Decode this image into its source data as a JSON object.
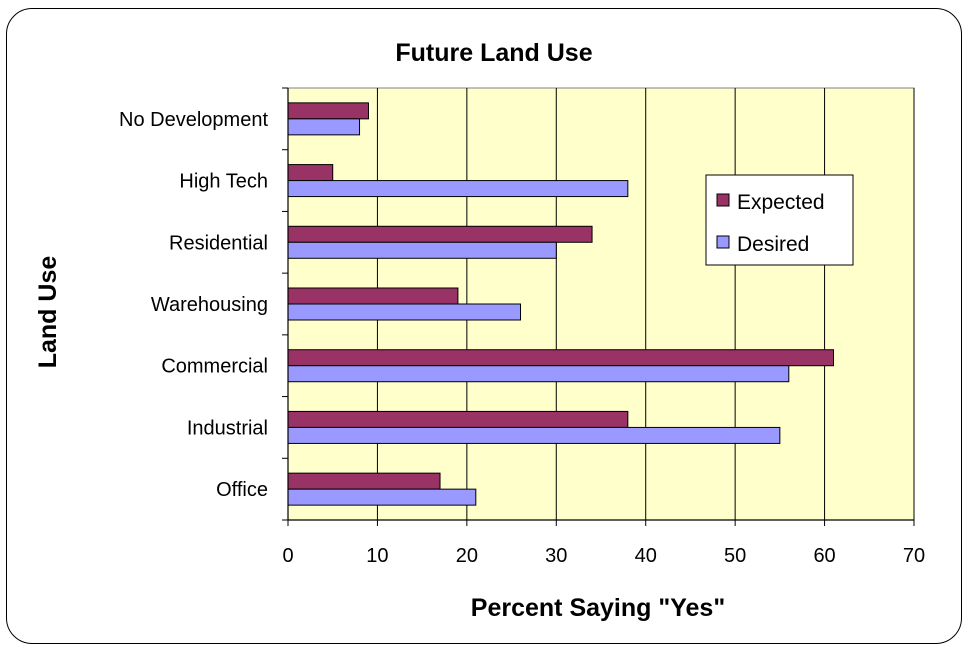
{
  "chart_data": {
    "type": "bar",
    "orientation": "horizontal",
    "title": "Future Land Use",
    "xlabel": "Percent Saying \"Yes\"",
    "ylabel": "Land Use",
    "categories": [
      "No Development",
      "High Tech",
      "Residential",
      "Warehousing",
      "Commercial",
      "Industrial",
      "Office"
    ],
    "series": [
      {
        "name": "Expected",
        "color": "#993366",
        "values": [
          9,
          5,
          34,
          19,
          61,
          38,
          17
        ]
      },
      {
        "name": "Desired",
        "color": "#9999FF",
        "values": [
          8,
          38,
          30,
          26,
          56,
          55,
          21
        ]
      }
    ],
    "xlim": [
      0,
      70
    ],
    "xticks": [
      0,
      10,
      20,
      30,
      40,
      50,
      60,
      70
    ],
    "grid": "vertical",
    "plot_background": "#FFFFCC",
    "legend_position": "right"
  }
}
